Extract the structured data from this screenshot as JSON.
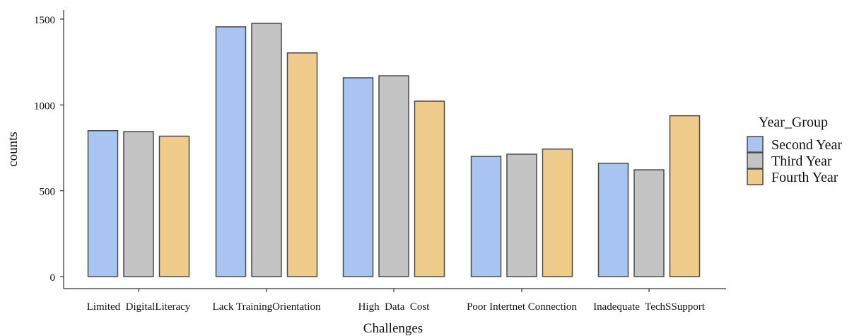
{
  "chart_data": {
    "type": "bar",
    "title": "",
    "xlabel": "Challenges",
    "ylabel": "counts",
    "categories": [
      "Limited  DigitalLiteracy",
      "Lack TrainingOrientation",
      "High  Data  Cost",
      "Poor Intertnet Connection",
      "Inadequate  TechSSupport"
    ],
    "series": [
      {
        "name": "Second Year",
        "color": "#A8C4F0",
        "values": [
          850,
          1455,
          1158,
          700,
          660
        ]
      },
      {
        "name": "Third Year",
        "color": "#C4C4C4",
        "values": [
          845,
          1475,
          1170,
          713,
          622
        ]
      },
      {
        "name": "Fourth Year",
        "color": "#F0CC8C",
        "values": [
          818,
          1303,
          1022,
          743,
          937
        ]
      }
    ],
    "yticks": [
      0,
      500,
      1000,
      1500
    ],
    "ylim": [
      0,
      1520
    ],
    "grid": false,
    "legend": {
      "title": "Year_Group",
      "placement": "right"
    }
  }
}
